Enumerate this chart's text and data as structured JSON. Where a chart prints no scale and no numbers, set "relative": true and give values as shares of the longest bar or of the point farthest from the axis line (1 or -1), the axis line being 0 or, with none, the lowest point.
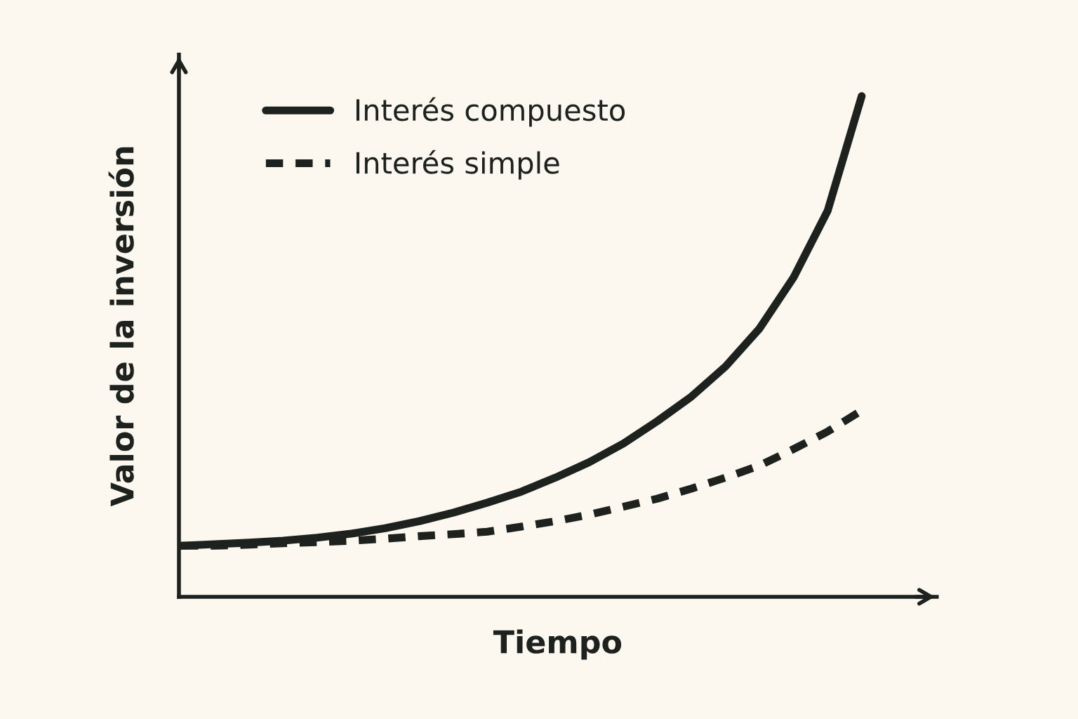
{
  "chart_data": {
    "type": "line",
    "relative": true,
    "xlabel": "Tiempo",
    "ylabel": "Valor de la inversión",
    "categories": [
      null,
      null,
      null,
      null,
      null,
      null,
      null,
      null,
      null,
      null,
      null,
      null,
      null,
      null,
      null,
      null,
      null,
      null,
      null,
      null,
      null
    ],
    "series": [
      {
        "name": "Interés compuesto",
        "color": "#1e221e",
        "line_style": "solid",
        "values": [
          0.102,
          0.105,
          0.108,
          0.112,
          0.118,
          0.126,
          0.137,
          0.151,
          0.168,
          0.188,
          0.21,
          0.238,
          0.269,
          0.306,
          0.351,
          0.4,
          0.46,
          0.536,
          0.638,
          0.771,
          1.0
        ]
      },
      {
        "name": "Interés simple",
        "color": "#1e221e",
        "line_style": "dashed",
        "values": [
          0.102,
          0.102,
          0.104,
          0.107,
          0.109,
          0.112,
          0.116,
          0.121,
          0.125,
          0.13,
          0.14,
          0.151,
          0.164,
          0.18,
          0.196,
          0.216,
          0.238,
          0.262,
          0.295,
          0.33,
          0.372
        ]
      }
    ],
    "legend": "top left",
    "grid": false,
    "marker": "none"
  }
}
